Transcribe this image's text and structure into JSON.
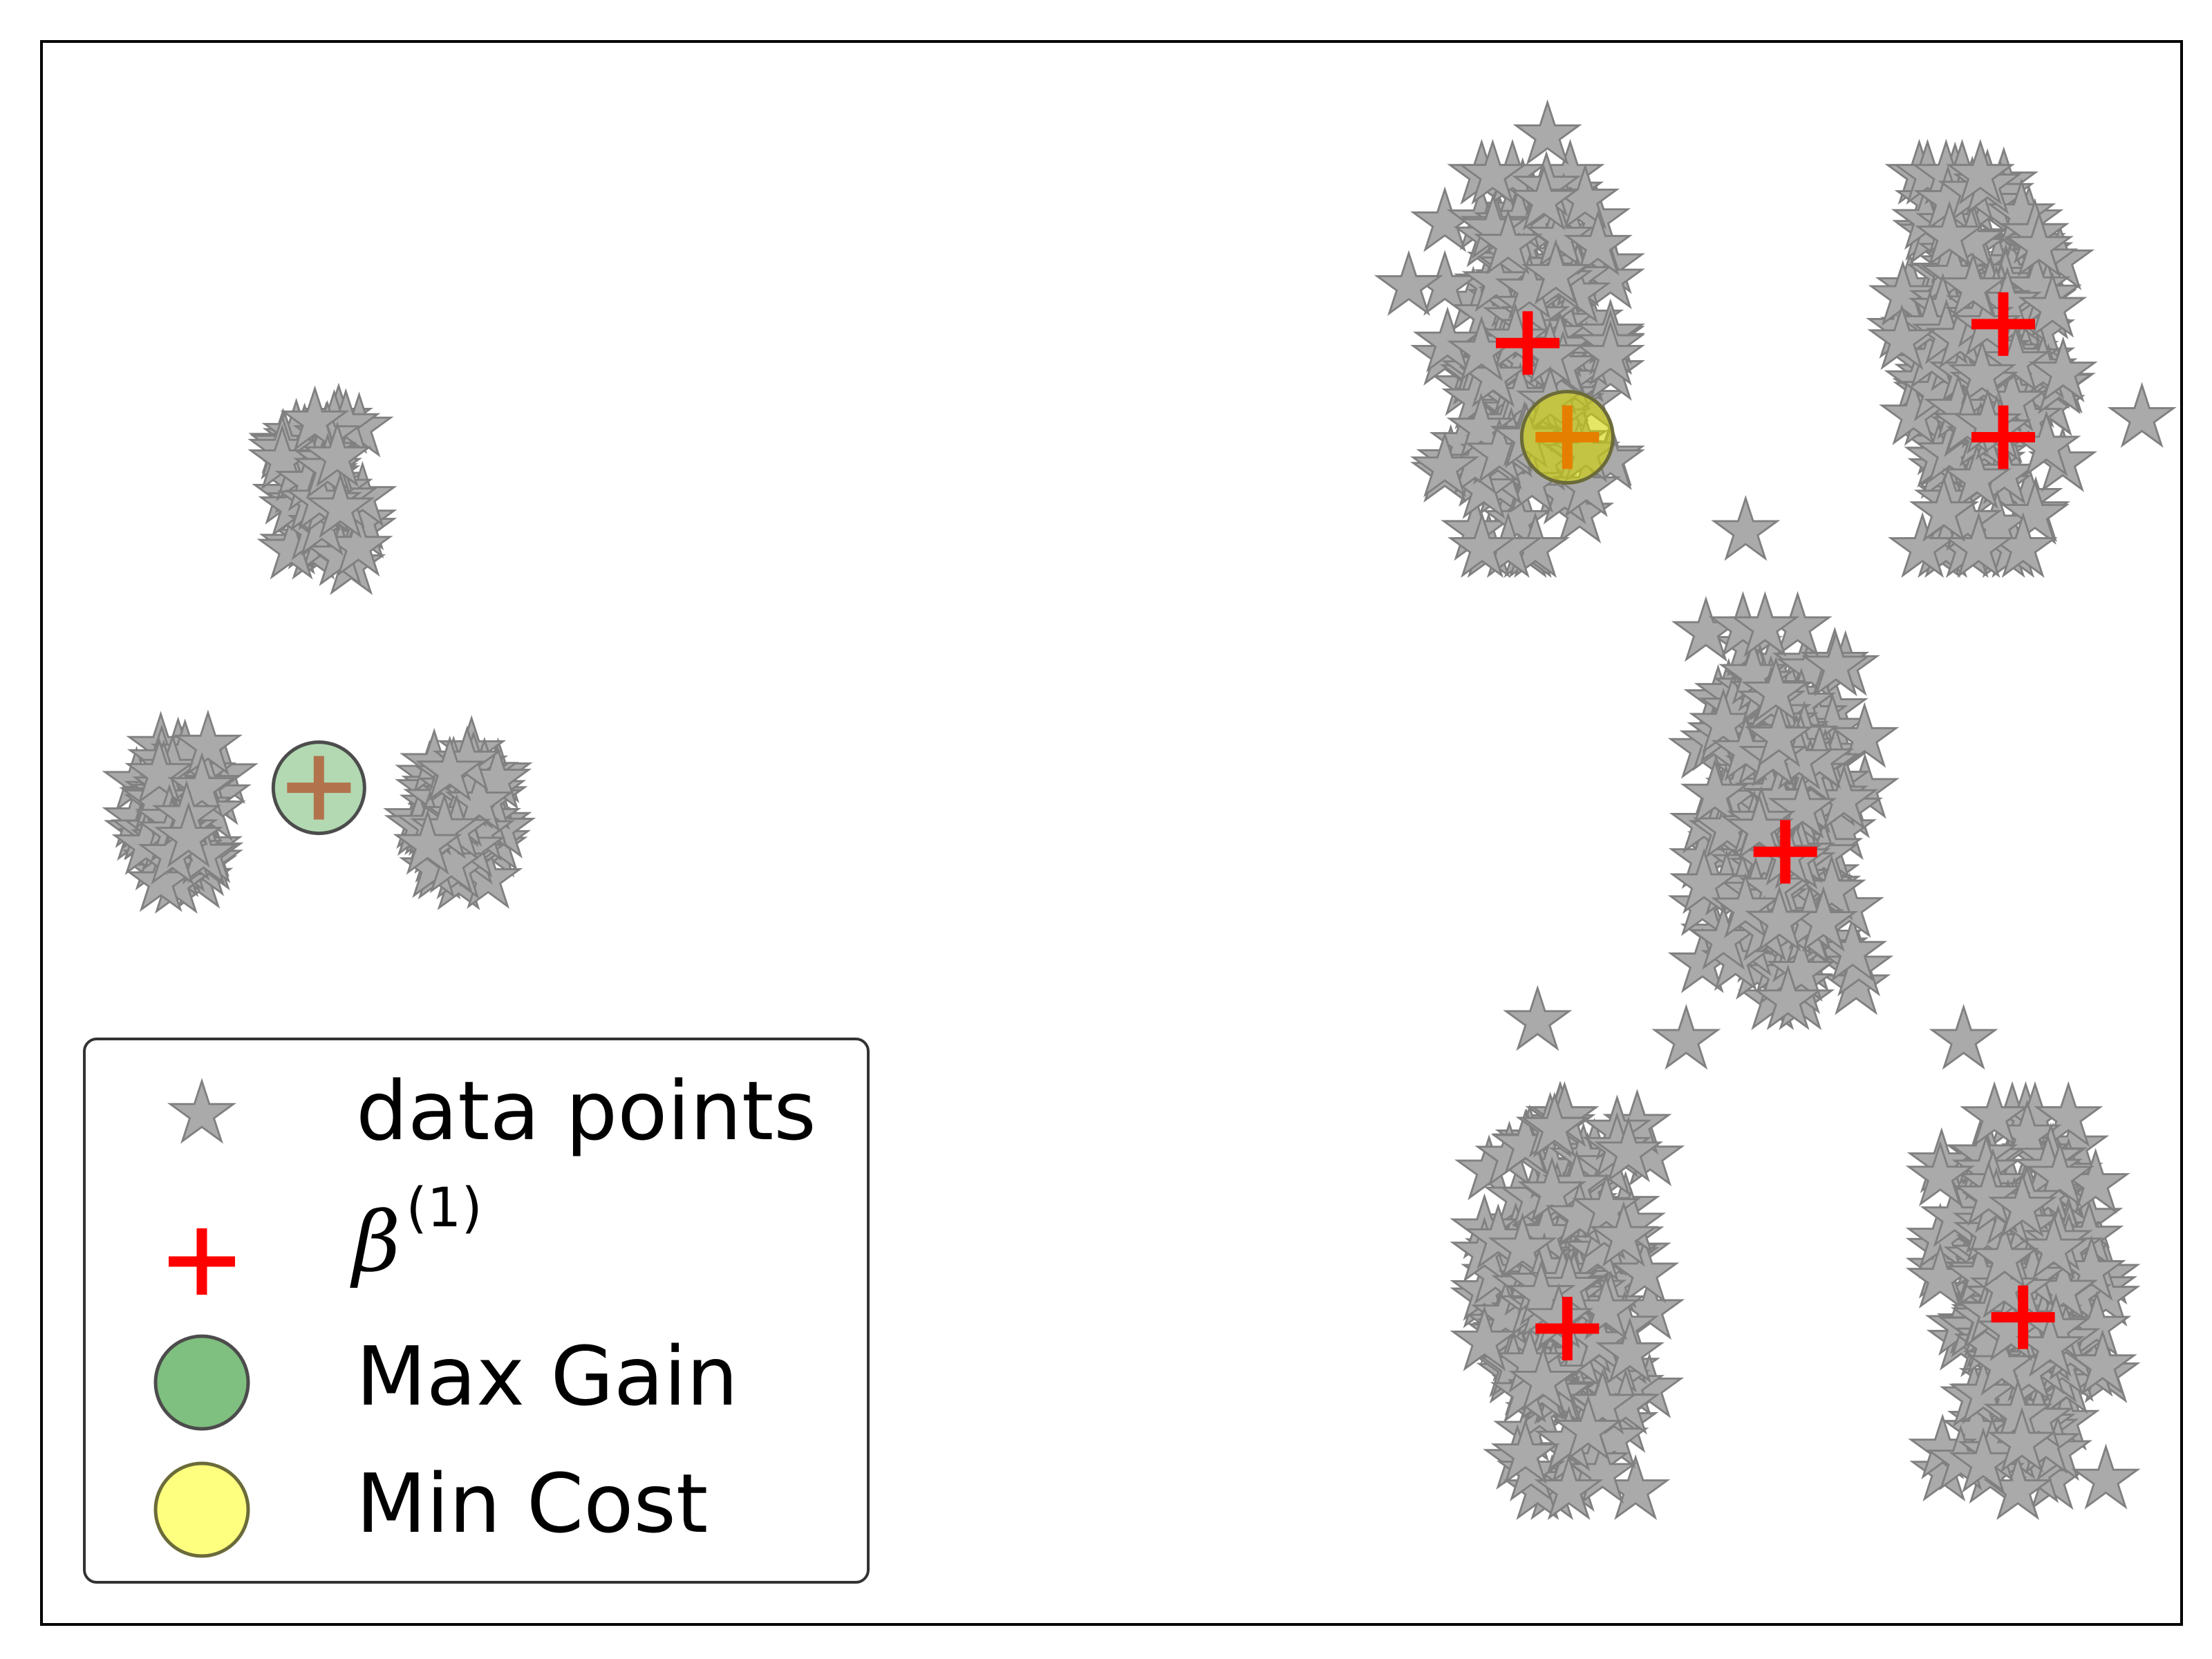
{
  "chart_data": {
    "type": "scatter",
    "title": "",
    "xlabel": "",
    "ylabel": "",
    "xlim": [
      -0.4,
      10.4
    ],
    "ylim": [
      -0.7,
      7.7
    ],
    "grid": false,
    "axes_ticks": false,
    "legend_placement": "lower-left",
    "colors": {
      "points_fill": "#aaaaaa",
      "points_edge": "#808080",
      "centers": "#ff0000",
      "max_gain_fill": "#7fbf7f",
      "max_gain_edge": "#4c4c4c",
      "min_cost_fill": "#ffff7f",
      "min_cost_edge": "#6b6b3a",
      "frame": "#000000",
      "legend_edge": "#333333"
    },
    "legend": [
      {
        "label": "data points",
        "marker": "star"
      },
      {
        "label_base": "β",
        "label_sup": "(1)",
        "marker": "plus"
      },
      {
        "label": "Max Gain",
        "marker": "circle-green"
      },
      {
        "label": "Min Cost",
        "marker": "circle-yellow"
      }
    ],
    "series": [
      {
        "name": "data points",
        "marker": "star",
        "clusters": [
          {
            "cx": 1.0,
            "cy": 5.3,
            "sx": 0.1,
            "sy": 0.18,
            "n": 90
          },
          {
            "cx": 0.3,
            "cy": 3.6,
            "sx": 0.1,
            "sy": 0.18,
            "n": 90
          },
          {
            "cx": 1.7,
            "cy": 3.6,
            "sx": 0.1,
            "sy": 0.18,
            "n": 90
          },
          {
            "cx": 7.1,
            "cy": 6.0,
            "sx": 0.19,
            "sy": 0.45,
            "n": 240
          },
          {
            "cx": 9.4,
            "cy": 6.0,
            "sx": 0.19,
            "sy": 0.45,
            "n": 240
          },
          {
            "cx": 8.4,
            "cy": 3.6,
            "sx": 0.19,
            "sy": 0.45,
            "n": 240
          },
          {
            "cx": 7.3,
            "cy": 1.0,
            "sx": 0.19,
            "sy": 0.45,
            "n": 240
          },
          {
            "cx": 9.6,
            "cy": 1.0,
            "sx": 0.19,
            "sy": 0.45,
            "n": 240
          }
        ],
        "outliers": [
          {
            "x": 7.2,
            "y": 7.2
          },
          {
            "x": 6.5,
            "y": 6.4
          },
          {
            "x": 10.2,
            "y": 5.7
          },
          {
            "x": 9.2,
            "y": 5.2
          },
          {
            "x": 8.2,
            "y": 5.1
          },
          {
            "x": 7.9,
            "y": 2.4
          },
          {
            "x": 7.15,
            "y": 2.5
          },
          {
            "x": 9.3,
            "y": 2.4
          }
        ]
      },
      {
        "name": "β(1)",
        "marker": "plus",
        "points": [
          {
            "x": 1.0,
            "y": 3.74
          },
          {
            "x": 7.1,
            "y": 6.1
          },
          {
            "x": 7.3,
            "y": 5.6
          },
          {
            "x": 9.5,
            "y": 6.2
          },
          {
            "x": 9.5,
            "y": 5.6
          },
          {
            "x": 8.4,
            "y": 3.4
          },
          {
            "x": 7.3,
            "y": 0.87
          },
          {
            "x": 9.6,
            "y": 0.93
          }
        ]
      },
      {
        "name": "Max Gain",
        "marker": "circle",
        "points": [
          {
            "x": 1.0,
            "y": 3.74
          }
        ]
      },
      {
        "name": "Min Cost",
        "marker": "circle",
        "points": [
          {
            "x": 7.3,
            "y": 5.6
          }
        ]
      }
    ]
  }
}
